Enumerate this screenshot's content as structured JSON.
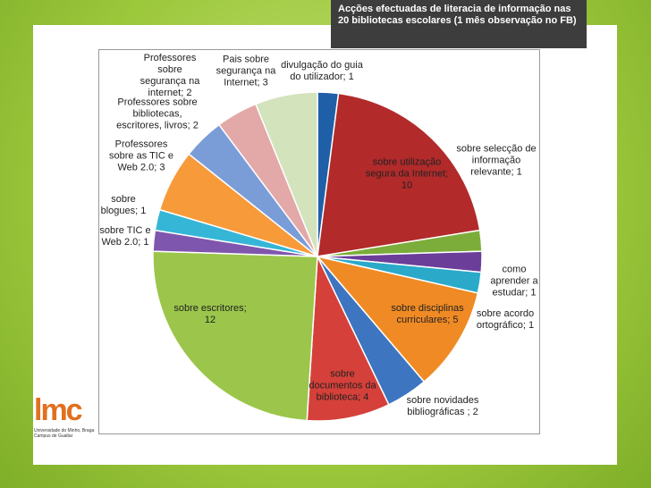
{
  "chart_data": {
    "type": "pie",
    "title": "Acções efectuadas de literacia de informação nas 20 bibliotecas escolares (1 mês observação no FB)",
    "values": [
      1,
      10,
      1,
      1,
      1,
      5,
      2,
      4,
      12,
      1,
      1,
      3,
      2,
      2,
      3
    ],
    "value_labels": [
      "divulgação do guia do utilizador; 1",
      "sobre utilização segura da Internet; 10",
      "sobre selecção de informação relevante; 1",
      "como aprender a estudar; 1",
      "sobre acordo ortográfico; 1",
      "sobre disciplinas curriculares; 5",
      "sobre novidades bibliográficas ; 2",
      "sobre documentos da biblioteca; 4",
      "sobre escritores; 12",
      "sobre TIC e Web 2.0; 1",
      "sobre blogues; 1",
      "Professores sobre as TIC e Web 2.0; 3",
      "Professores sobre bibliotecas, escritores, livros; 2",
      "Professores sobre segurança na internet; 2",
      "Pais sobre segurança na Internet; 3"
    ],
    "colors": [
      "#1f5fa8",
      "#b22a2a",
      "#7cad3a",
      "#6b3e9a",
      "#2aa9c9",
      "#f08a24",
      "#3d75c0",
      "#d6403a",
      "#9bc64b",
      "#7f56ad",
      "#35b6d6",
      "#f79a3a",
      "#7a9dd8",
      "#e3a8a8",
      "#d3e3bc"
    ]
  },
  "logo": {
    "mark": "lmc",
    "line1": "Universidade do Minho, Braga",
    "line2": "Campus de Gualtar"
  }
}
